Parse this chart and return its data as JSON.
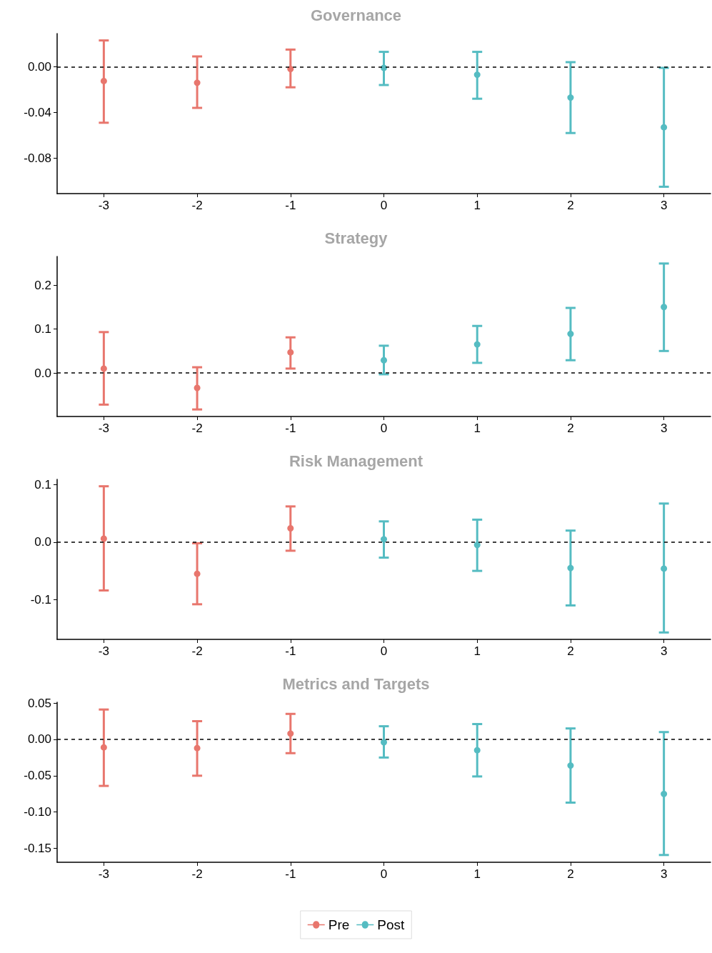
{
  "chart_data": [
    {
      "type": "scatter",
      "title": "Governance",
      "categories": [
        "-3",
        "-2",
        "-1",
        "0",
        "1",
        "2",
        "3"
      ],
      "marker": "circle",
      "ylim": [
        -0.111,
        0.029
      ],
      "yticks": [
        {
          "value": -0.08,
          "label": "-0.08"
        },
        {
          "value": -0.04,
          "label": "-0.04"
        },
        {
          "value": 0,
          "label": "0.00"
        }
      ],
      "ref_lines": [
        {
          "axis": "y",
          "value": 0,
          "color": "#000000",
          "line_style": "dashed"
        }
      ],
      "series": [
        {
          "color": "#e8766d",
          "values": [
            -0.0125,
            -0.014,
            -0.002,
            null,
            null,
            null,
            null
          ],
          "errors": [
            [
              -0.049,
              0.023
            ],
            [
              -0.036,
              0.009
            ],
            [
              -0.018,
              0.015
            ],
            null,
            null,
            null,
            null
          ]
        },
        {
          "color": "#55bcc2",
          "values": [
            null,
            null,
            null,
            -0.001,
            -0.007,
            -0.027,
            -0.053
          ],
          "errors": [
            null,
            null,
            null,
            [
              -0.016,
              0.013
            ],
            [
              -0.028,
              0.013
            ],
            [
              -0.058,
              0.004
            ],
            [
              -0.105,
              -0.001
            ]
          ]
        }
      ]
    },
    {
      "type": "scatter",
      "title": "Strategy",
      "categories": [
        "-3",
        "-2",
        "-1",
        "0",
        "1",
        "2",
        "3"
      ],
      "marker": "circle",
      "ylim": [
        -0.099,
        0.265
      ],
      "yticks": [
        {
          "value": 0,
          "label": "0.0"
        },
        0.1,
        0.2
      ],
      "ref_lines": [
        {
          "axis": "y",
          "value": 0,
          "color": "#000000",
          "line_style": "dashed"
        }
      ],
      "series": [
        {
          "color": "#e8766d",
          "values": [
            0.01,
            -0.034,
            0.047,
            null,
            null,
            null,
            null
          ],
          "errors": [
            [
              -0.072,
              0.093
            ],
            [
              -0.083,
              0.013
            ],
            [
              0.01,
              0.081
            ],
            null,
            null,
            null,
            null
          ]
        },
        {
          "color": "#55bcc2",
          "values": [
            null,
            null,
            null,
            0.029,
            0.065,
            0.089,
            0.15
          ],
          "errors": [
            null,
            null,
            null,
            [
              -0.003,
              0.062
            ],
            [
              0.023,
              0.107
            ],
            [
              0.029,
              0.148
            ],
            [
              0.05,
              0.249
            ]
          ]
        }
      ]
    },
    {
      "type": "scatter",
      "title": "Risk Management",
      "categories": [
        "-3",
        "-2",
        "-1",
        "0",
        "1",
        "2",
        "3"
      ],
      "marker": "circle",
      "ylim": [
        -0.169,
        0.109
      ],
      "yticks": [
        -0.1,
        {
          "value": 0,
          "label": "0.0"
        },
        0.1
      ],
      "ref_lines": [
        {
          "axis": "y",
          "value": 0,
          "color": "#000000",
          "line_style": "dashed"
        }
      ],
      "series": [
        {
          "color": "#e8766d",
          "values": [
            0.006,
            -0.055,
            0.024,
            null,
            null,
            null,
            null
          ],
          "errors": [
            [
              -0.084,
              0.097
            ],
            [
              -0.108,
              -0.002
            ],
            [
              -0.015,
              0.062
            ],
            null,
            null,
            null,
            null
          ]
        },
        {
          "color": "#55bcc2",
          "values": [
            null,
            null,
            null,
            0.005,
            -0.005,
            -0.045,
            -0.046
          ],
          "errors": [
            null,
            null,
            null,
            [
              -0.027,
              0.036
            ],
            [
              -0.05,
              0.039
            ],
            [
              -0.11,
              0.02
            ],
            [
              -0.157,
              0.067
            ]
          ]
        }
      ]
    },
    {
      "type": "scatter",
      "title": "Metrics and Targets",
      "categories": [
        "-3",
        "-2",
        "-1",
        "0",
        "1",
        "2",
        "3"
      ],
      "marker": "circle",
      "legend": "bottom",
      "ylim": [
        -0.169,
        0.051
      ],
      "yticks": [
        {
          "value": -0.15,
          "label": "-0.15"
        },
        {
          "value": -0.1,
          "label": "-0.10"
        },
        {
          "value": -0.05,
          "label": "-0.05"
        },
        {
          "value": 0,
          "label": "0.00"
        },
        0.05
      ],
      "ref_lines": [
        {
          "axis": "y",
          "value": 0,
          "color": "#000000",
          "line_style": "dashed"
        }
      ],
      "series": [
        {
          "name": "Pre",
          "color": "#e8766d",
          "values": [
            -0.011,
            -0.012,
            0.008,
            null,
            null,
            null,
            null
          ],
          "errors": [
            [
              -0.064,
              0.041
            ],
            [
              -0.05,
              0.025
            ],
            [
              -0.019,
              0.035
            ],
            null,
            null,
            null,
            null
          ]
        },
        {
          "name": "Post",
          "color": "#55bcc2",
          "values": [
            null,
            null,
            null,
            -0.004,
            -0.015,
            -0.036,
            -0.075
          ],
          "errors": [
            null,
            null,
            null,
            [
              -0.025,
              0.018
            ],
            [
              -0.051,
              0.021
            ],
            [
              -0.087,
              0.015
            ],
            [
              -0.159,
              0.01
            ]
          ]
        }
      ]
    }
  ]
}
